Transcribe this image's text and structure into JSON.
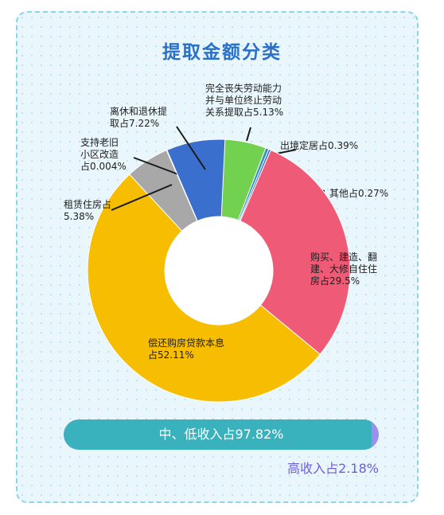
{
  "title": "提取金额分类",
  "colors": {
    "yellow": "#f7bd00",
    "pink": "#ef5a76",
    "blue": "#3a6fcd",
    "gray": "#a8a8a8",
    "green": "#72d24f",
    "teal": "#39b2bd",
    "purple": "#9b8ff0"
  },
  "chart_data": [
    {
      "type": "pie",
      "title": "提取金额分类",
      "slices": [
        {
          "label": "完全丧失劳动能力\n并与单位终止劳动\n关系提取占5.13%",
          "value": 5.13,
          "color": "#72d24f"
        },
        {
          "label": "出境定居占0.39%",
          "value": 0.39,
          "color": "#2f8fc7"
        },
        {
          "label": "其他占0.27%",
          "value": 0.27,
          "color": "#3b6fb5"
        },
        {
          "label": "购买、建造、翻\n建、大修自住住\n房占29.5%",
          "value": 29.5,
          "color": "#ef5a76"
        },
        {
          "label": "偿还购房贷款本息\n占52.11%",
          "value": 52.11,
          "color": "#f7bd00"
        },
        {
          "label": "租赁住房占\n5.38%",
          "value": 5.38,
          "color": "#a8a8a8"
        },
        {
          "label": "支持老旧\n小区改造\n占0.004%",
          "value": 0.004,
          "color": "#7a7a7a"
        },
        {
          "label": "离休和退休提\n取占7.22%",
          "value": 7.22,
          "color": "#3a6fcd"
        }
      ]
    },
    {
      "type": "bar",
      "series": [
        {
          "label": "中、低收入占97.82%",
          "value": 97.82
        },
        {
          "label": "高收入占2.18%",
          "value": 2.18
        }
      ]
    }
  ]
}
